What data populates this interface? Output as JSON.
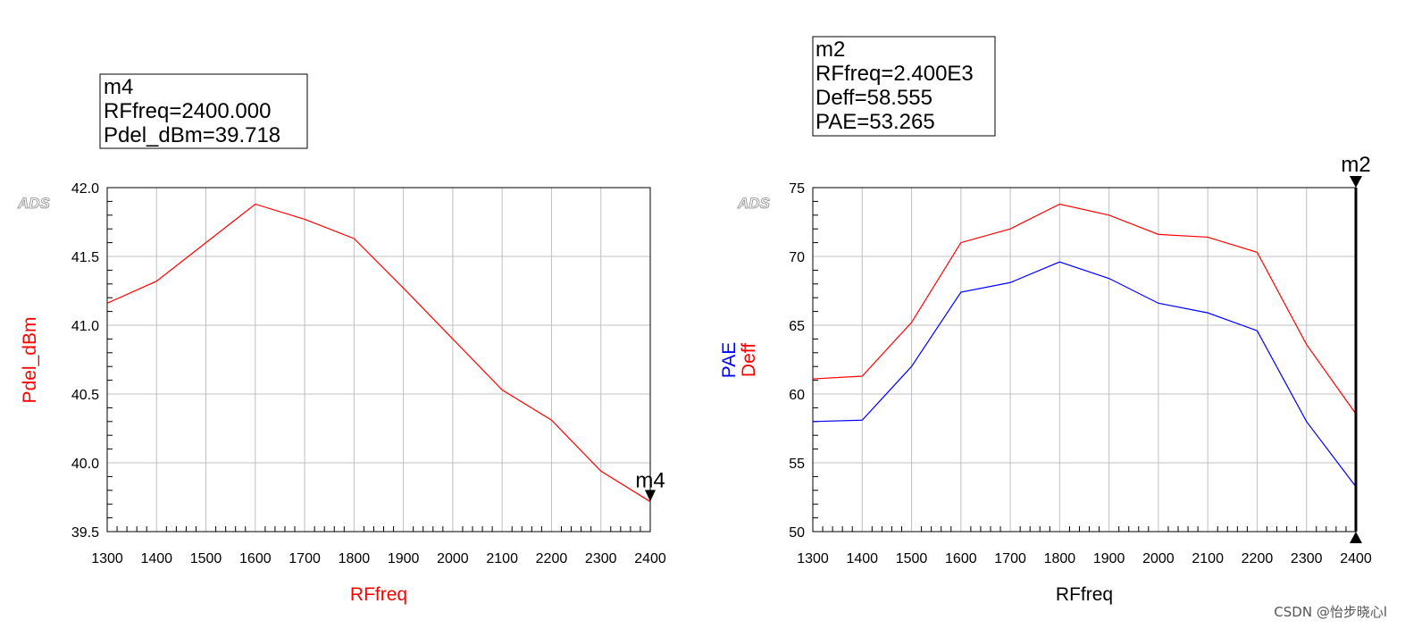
{
  "chart_data": [
    {
      "type": "line",
      "watermark": "ADS",
      "xlabel": "RFfreq",
      "ylabel": "Pdel_dBm",
      "xlim": [
        1300,
        2400
      ],
      "ylim": [
        39.5,
        42.0
      ],
      "x_ticks": [
        "1300",
        "1400",
        "1500",
        "1600",
        "1700",
        "1800",
        "1900",
        "2000",
        "2100",
        "2200",
        "2300",
        "2400"
      ],
      "y_ticks": [
        "42.0",
        "41.5",
        "41.0",
        "40.5",
        "40.0",
        "39.5"
      ],
      "grid": true,
      "x": [
        1300,
        1400,
        1500,
        1600,
        1700,
        1800,
        1900,
        2000,
        2100,
        2200,
        2300,
        2400
      ],
      "series": [
        {
          "name": "Pdel_dBm",
          "color": "#ff0000",
          "values": [
            41.16,
            41.32,
            41.6,
            41.88,
            41.77,
            41.63,
            41.27,
            40.9,
            40.53,
            40.31,
            39.94,
            39.718
          ]
        }
      ],
      "marker": {
        "name": "m4",
        "label": "m4",
        "x": 2400,
        "y": 39.718,
        "readout": [
          "m4",
          "RFfreq=2400.000",
          "Pdel_dBm=39.718"
        ]
      }
    },
    {
      "type": "line",
      "watermark": "ADS",
      "xlabel": "RFfreq",
      "ylabel": [
        "PAE",
        "Deff"
      ],
      "xlim": [
        1300,
        2400
      ],
      "ylim": [
        50,
        75
      ],
      "x_ticks": [
        "1300",
        "1400",
        "1500",
        "1600",
        "1700",
        "1800",
        "1900",
        "2000",
        "2100",
        "2200",
        "2300",
        "2400"
      ],
      "y_ticks": [
        "75",
        "70",
        "65",
        "60",
        "55",
        "50"
      ],
      "grid": true,
      "x": [
        1300,
        1400,
        1500,
        1600,
        1700,
        1800,
        1900,
        2000,
        2100,
        2200,
        2300,
        2400
      ],
      "series": [
        {
          "name": "Deff",
          "color": "#ff0000",
          "values": [
            61.1,
            61.3,
            65.2,
            71.0,
            72.0,
            73.8,
            73.0,
            71.6,
            71.4,
            70.3,
            63.6,
            58.555
          ]
        },
        {
          "name": "PAE",
          "color": "#0000ff",
          "values": [
            58.0,
            58.1,
            62.0,
            67.4,
            68.1,
            69.6,
            68.4,
            66.6,
            65.9,
            64.6,
            58.0,
            53.265
          ]
        }
      ],
      "marker": {
        "name": "m2",
        "label": "m2",
        "x": 2400,
        "readout": [
          "m2",
          "RFfreq=2.400E3",
          "Deff=58.555",
          "PAE=53.265"
        ]
      }
    }
  ],
  "watermark_text": "CSDN @怡步晓心l"
}
